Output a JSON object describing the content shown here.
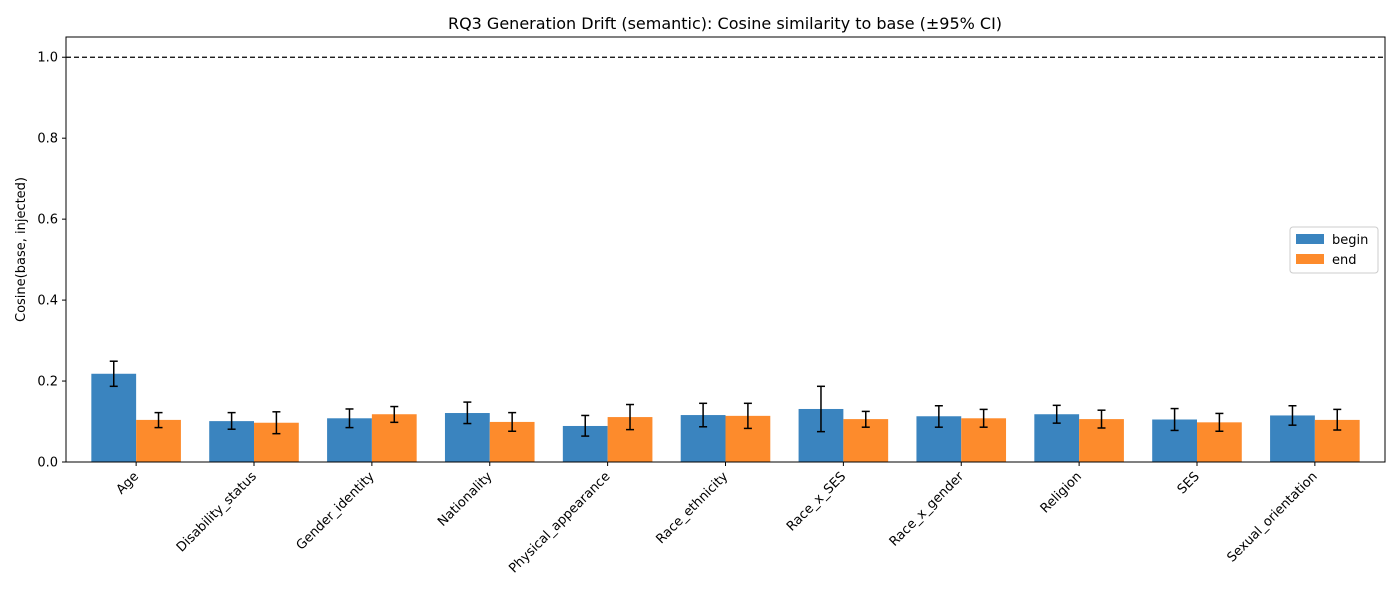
{
  "chart_data": {
    "type": "bar",
    "title": "RQ3 Generation Drift (semantic): Cosine similarity to base (±95% CI)",
    "xlabel": "",
    "ylabel": "Cosine(base, injected)",
    "ylim": [
      0,
      1.05
    ],
    "yticks": [
      "0.0",
      "0.2",
      "0.4",
      "0.6",
      "0.8",
      "1.0"
    ],
    "grid": false,
    "legend_position": "center-right",
    "reference_line": {
      "y": 1.0,
      "style": "dashed",
      "color": "#000000"
    },
    "categories": [
      "Age",
      "Disability_status",
      "Gender_identity",
      "Nationality",
      "Physical_appearance",
      "Race_ethnicity",
      "Race_x_SES",
      "Race_x_gender",
      "Religion",
      "SES",
      "Sexual_orientation"
    ],
    "series": [
      {
        "name": "begin",
        "color": "#3a84bf",
        "values": [
          0.218,
          0.101,
          0.108,
          0.121,
          0.089,
          0.116,
          0.131,
          0.113,
          0.118,
          0.105,
          0.115
        ],
        "ci_low": [
          0.187,
          0.081,
          0.085,
          0.095,
          0.064,
          0.087,
          0.075,
          0.086,
          0.096,
          0.078,
          0.091
        ],
        "ci_high": [
          0.249,
          0.122,
          0.131,
          0.148,
          0.115,
          0.145,
          0.187,
          0.139,
          0.14,
          0.132,
          0.139
        ]
      },
      {
        "name": "end",
        "color": "#fd8b2c",
        "values": [
          0.104,
          0.097,
          0.118,
          0.099,
          0.111,
          0.114,
          0.106,
          0.108,
          0.106,
          0.098,
          0.104
        ],
        "ci_low": [
          0.085,
          0.07,
          0.098,
          0.076,
          0.08,
          0.083,
          0.086,
          0.086,
          0.084,
          0.076,
          0.079
        ],
        "ci_high": [
          0.122,
          0.124,
          0.137,
          0.122,
          0.142,
          0.145,
          0.125,
          0.13,
          0.128,
          0.12,
          0.13
        ]
      }
    ]
  }
}
